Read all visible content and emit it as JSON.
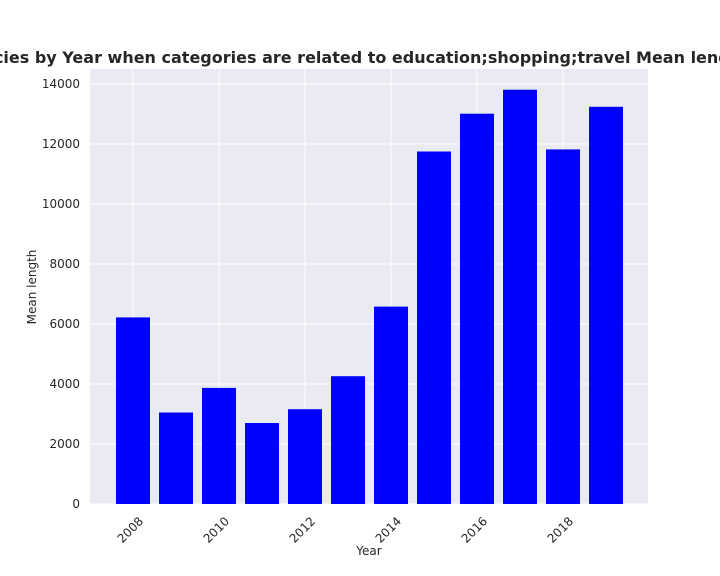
{
  "chart_data": {
    "type": "bar",
    "title": "Mean length in privacy policies by Year when categories are related to education;shopping;travel Mean length in privacy policies by Year",
    "xlabel": "Year",
    "ylabel": "Mean length",
    "categories": [
      "2008",
      "2009",
      "2010",
      "2011",
      "2012",
      "2013",
      "2014",
      "2015",
      "2016",
      "2017",
      "2018",
      "2019"
    ],
    "values": [
      6220,
      3050,
      3870,
      2700,
      3160,
      4260,
      6580,
      11750,
      13010,
      13810,
      11820,
      13240
    ],
    "x_tick_labels": [
      "2008",
      "2010",
      "2012",
      "2014",
      "2016",
      "2018"
    ],
    "y_tick_labels": [
      "0",
      "2000",
      "4000",
      "6000",
      "8000",
      "10000",
      "12000",
      "14000"
    ],
    "ylim": [
      0,
      14500
    ],
    "grid": true,
    "bar_color": "#0000ff",
    "plot_background": "#eaeaf2",
    "grid_color": "#ffffff"
  }
}
